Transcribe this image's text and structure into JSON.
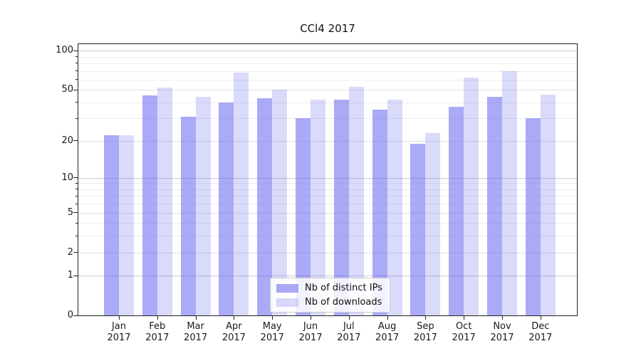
{
  "figure": {
    "title": "CCl4 2017"
  },
  "chart_data": {
    "type": "bar",
    "title": "CCl4 2017",
    "categories": [
      "Jan",
      "Feb",
      "Mar",
      "Apr",
      "May",
      "Jun",
      "Jul",
      "Aug",
      "Sep",
      "Oct",
      "Nov",
      "Dec"
    ],
    "x_year_suffix": "2017",
    "series": [
      {
        "name": "Nb of distinct IPs",
        "color": "#aaaaf9",
        "rgba": "rgba(100,100,240,0.55)",
        "values": [
          22,
          45,
          31,
          40,
          43,
          30,
          42,
          35,
          19,
          37,
          44,
          30
        ]
      },
      {
        "name": "Nb of downloads",
        "color": "#dbdafa",
        "rgba": "rgba(100,100,240,0.24)",
        "values": [
          22,
          52,
          44,
          68,
          50,
          42,
          53,
          42,
          23,
          62,
          70,
          46
        ]
      }
    ],
    "y_axis": {
      "scale": "log1p",
      "ylim": [
        0,
        112
      ],
      "tick_values": [
        100,
        50,
        20,
        10,
        5,
        2,
        1,
        0
      ],
      "tick_labels": [
        "100",
        "50",
        "20",
        "10",
        "5",
        "2",
        "1",
        "0"
      ],
      "major_gridlines": [
        100,
        10,
        1
      ],
      "mid_gridlines": [
        50,
        20,
        5,
        2
      ],
      "minor_gridlines": [
        90,
        80,
        70,
        60,
        40,
        30,
        9,
        8,
        7,
        6,
        4,
        3
      ]
    },
    "grid": true,
    "legend_position": "lower center"
  },
  "colors": {
    "grid_major": "#cbcbcb",
    "grid_mid": "#e0e0e0",
    "grid_minor": "#ededed",
    "spine": "#222222",
    "text": "#1a1a1a",
    "background": "#ffffff"
  }
}
